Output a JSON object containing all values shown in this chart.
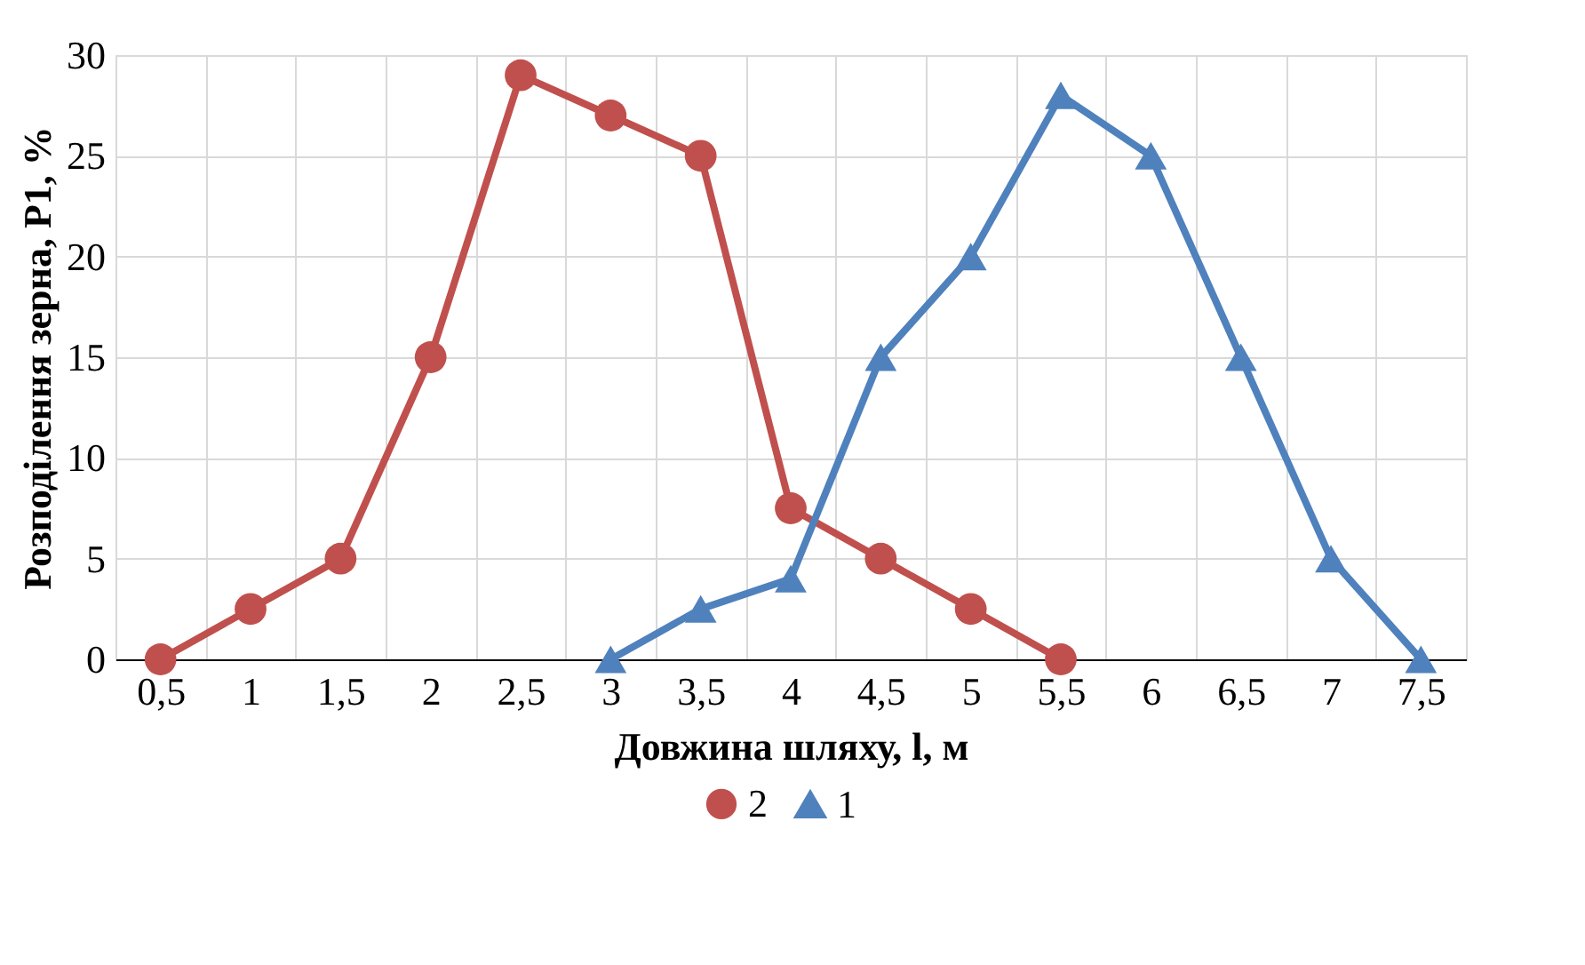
{
  "chart_data": {
    "type": "line",
    "xlabel": "Довжина шляху, l, м",
    "ylabel": "Розподілення зерна, P1, %",
    "categories": [
      "0,5",
      "1",
      "1,5",
      "2",
      "2,5",
      "3",
      "3,5",
      "4",
      "4,5",
      "5",
      "5,5",
      "6",
      "6,5",
      "7",
      "7,5"
    ],
    "series": [
      {
        "name": "2",
        "color": "#c0504d",
        "marker": "circle",
        "values": [
          0,
          2.5,
          5,
          15,
          29,
          27,
          25,
          7.5,
          5,
          2.5,
          0,
          null,
          null,
          null,
          null
        ]
      },
      {
        "name": "1",
        "color": "#4f81bd",
        "marker": "triangle",
        "values": [
          null,
          null,
          null,
          null,
          null,
          0,
          2.5,
          4,
          15,
          20,
          28,
          25,
          15,
          5,
          0
        ]
      }
    ],
    "ylim": [
      0,
      30
    ],
    "yticks": [
      0,
      5,
      10,
      15,
      20,
      25,
      30
    ],
    "grid": true,
    "legend": "bottom",
    "line_style": "solid"
  }
}
